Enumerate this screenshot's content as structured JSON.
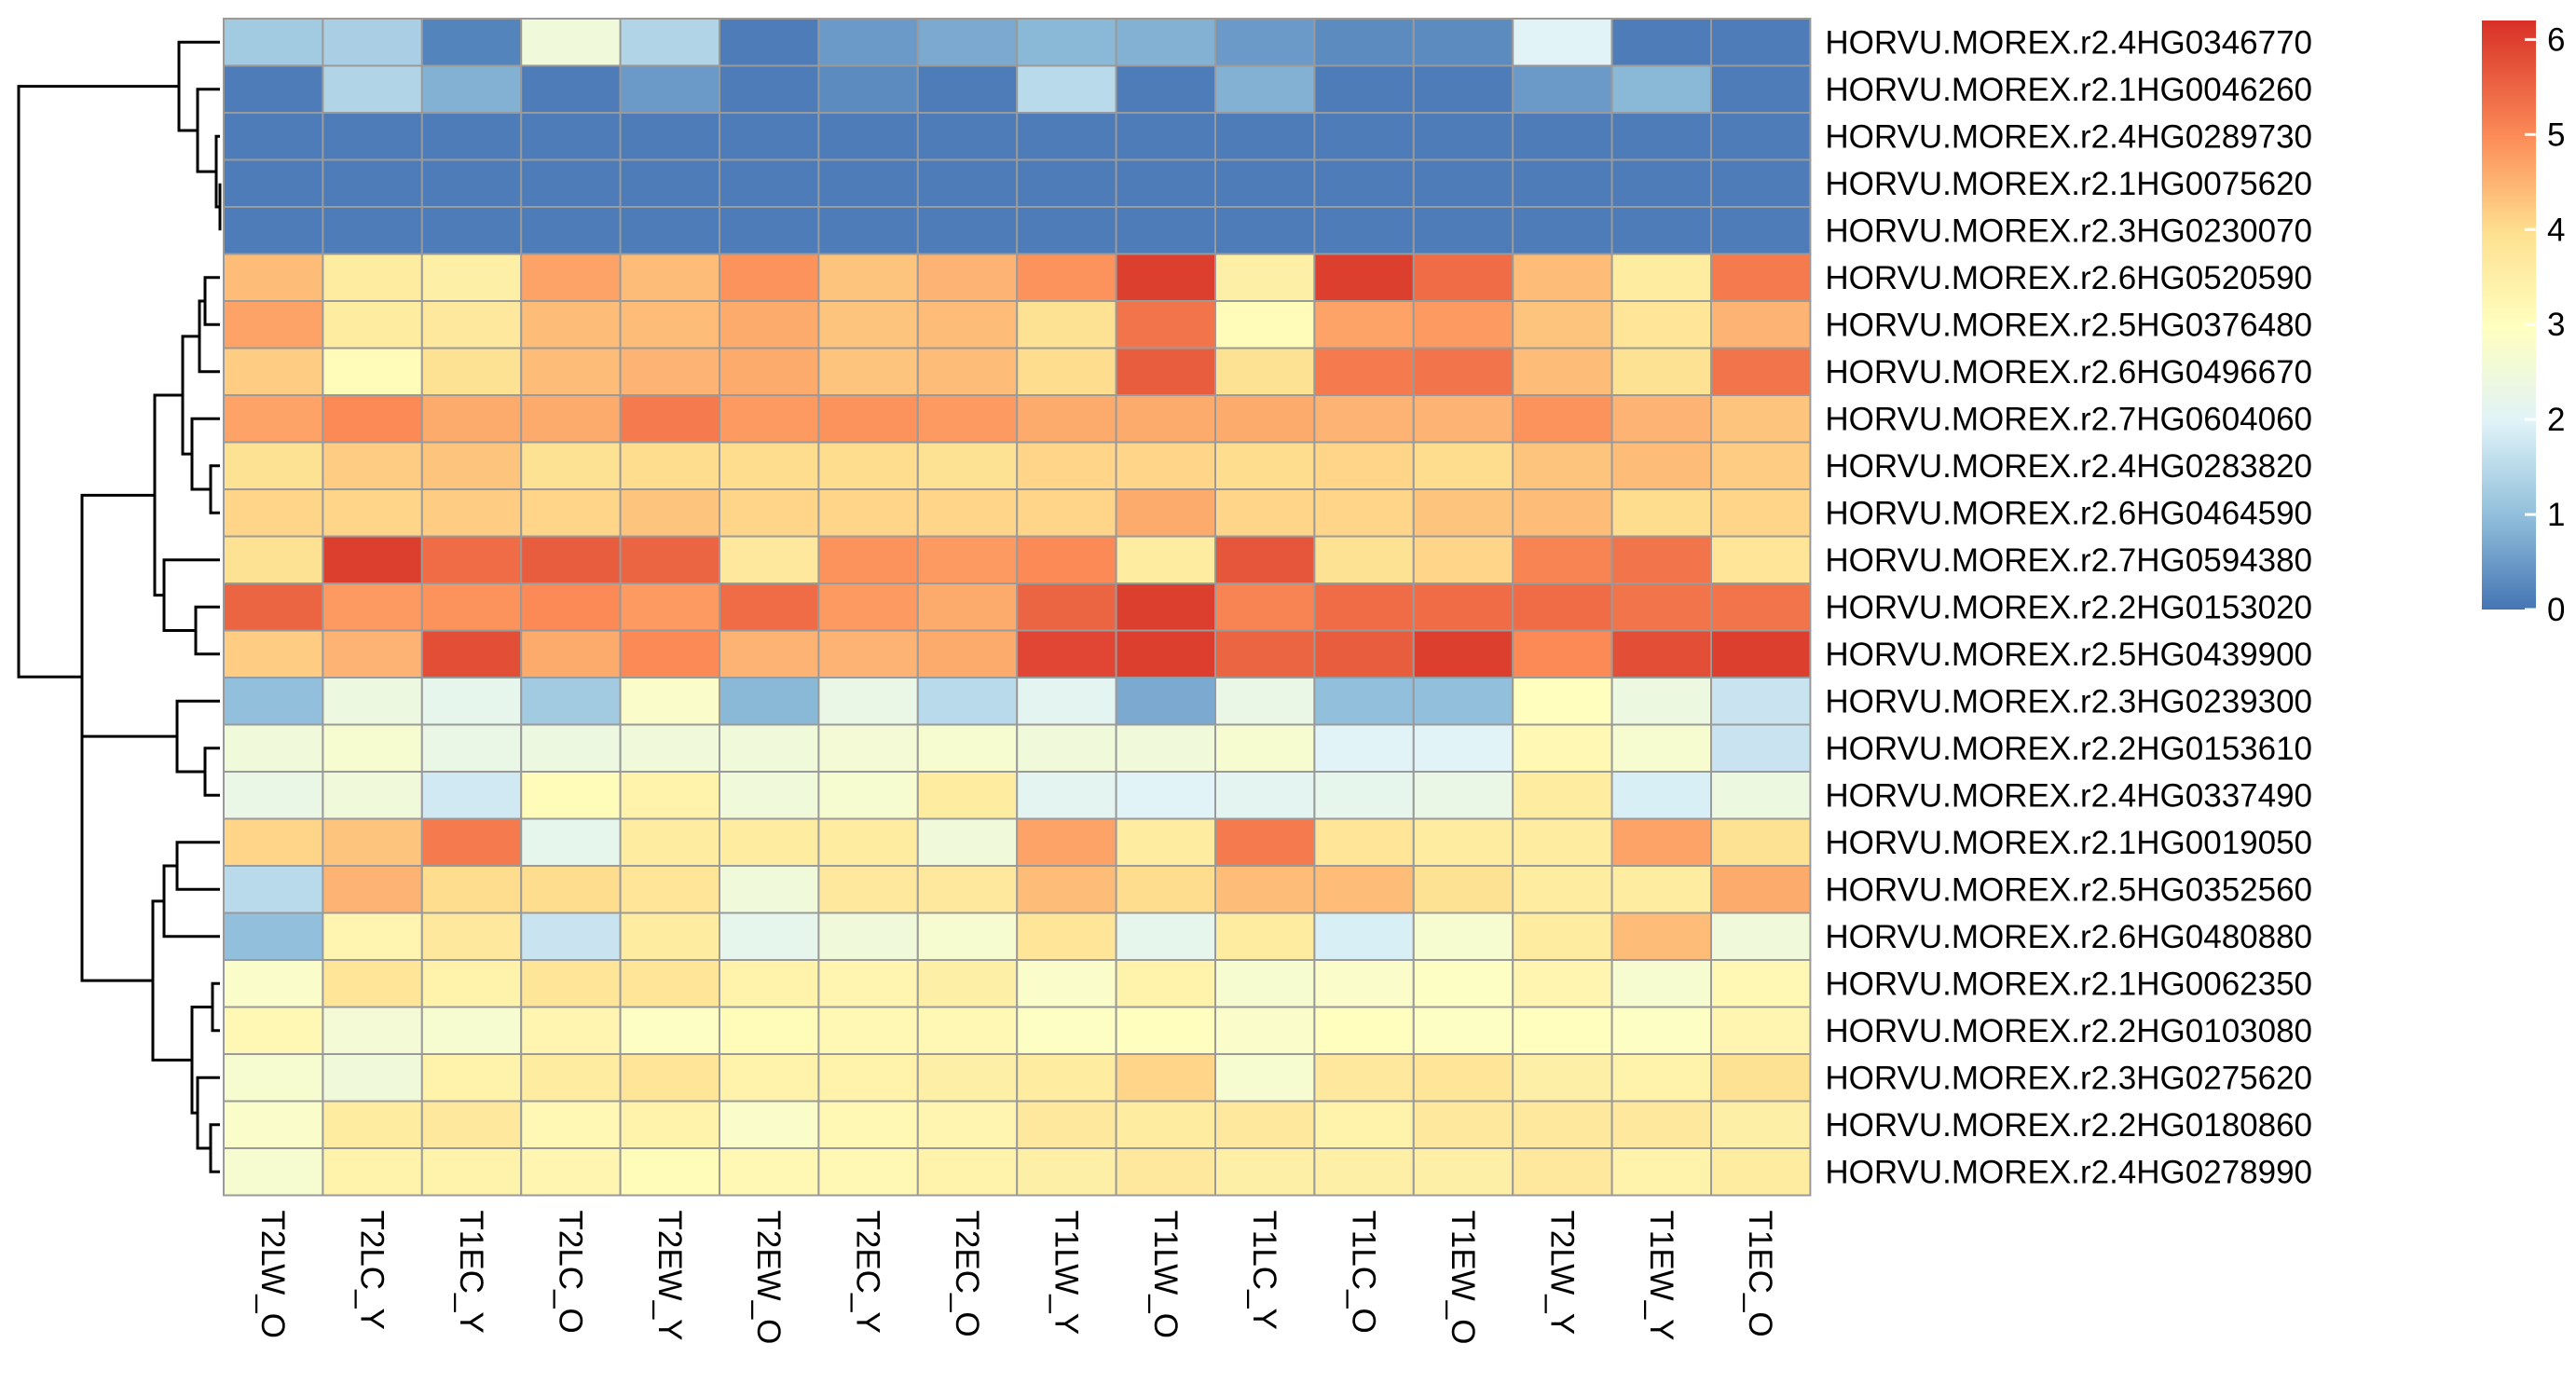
{
  "chart_data": {
    "type": "heatmap",
    "title": "",
    "xlabel": "",
    "ylabel": "",
    "columns": [
      "T2LW_O",
      "T2LC_Y",
      "T1EC_Y",
      "T2LC_O",
      "T2EW_Y",
      "T2EW_O",
      "T2EC_Y",
      "T2EC_O",
      "T1LW_Y",
      "T1LW_O",
      "T1LC_Y",
      "T1LC_O",
      "T1EW_O",
      "T2LW_Y",
      "T1EW_Y",
      "T1EC_O"
    ],
    "rows": [
      "HORVU.MOREX.r2.4HG0346770",
      "HORVU.MOREX.r2.1HG0046260",
      "HORVU.MOREX.r2.4HG0289730",
      "HORVU.MOREX.r2.1HG0075620",
      "HORVU.MOREX.r2.3HG0230070",
      "HORVU.MOREX.r2.6HG0520590",
      "HORVU.MOREX.r2.5HG0376480",
      "HORVU.MOREX.r2.6HG0496670",
      "HORVU.MOREX.r2.7HG0604060",
      "HORVU.MOREX.r2.4HG0283820",
      "HORVU.MOREX.r2.6HG0464590",
      "HORVU.MOREX.r2.7HG0594380",
      "HORVU.MOREX.r2.2HG0153020",
      "HORVU.MOREX.r2.5HG0439900",
      "HORVU.MOREX.r2.3HG0239300",
      "HORVU.MOREX.r2.2HG0153610",
      "HORVU.MOREX.r2.4HG0337490",
      "HORVU.MOREX.r2.1HG0019050",
      "HORVU.MOREX.r2.5HG0352560",
      "HORVU.MOREX.r2.6HG0480880",
      "HORVU.MOREX.r2.1HG0062350",
      "HORVU.MOREX.r2.2HG0103080",
      "HORVU.MOREX.r2.3HG0275620",
      "HORVU.MOREX.r2.2HG0180860",
      "HORVU.MOREX.r2.4HG0278990"
    ],
    "values": [
      [
        1.2,
        1.3,
        0.2,
        2.5,
        1.4,
        0.1,
        0.5,
        0.7,
        0.9,
        0.8,
        0.5,
        0.3,
        0.3,
        2.0,
        0.1,
        0.1
      ],
      [
        0.1,
        1.4,
        0.8,
        0.1,
        0.5,
        0.1,
        0.3,
        0.1,
        1.5,
        0.1,
        0.8,
        0.1,
        0.1,
        0.5,
        0.9,
        0.1
      ],
      [
        0.1,
        0.1,
        0.1,
        0.1,
        0.1,
        0.1,
        0.1,
        0.1,
        0.1,
        0.1,
        0.1,
        0.1,
        0.1,
        0.1,
        0.1,
        0.1
      ],
      [
        0.1,
        0.1,
        0.1,
        0.1,
        0.1,
        0.1,
        0.1,
        0.1,
        0.1,
        0.1,
        0.1,
        0.1,
        0.1,
        0.1,
        0.1,
        0.1
      ],
      [
        0.1,
        0.1,
        0.1,
        0.1,
        0.1,
        0.1,
        0.1,
        0.1,
        0.1,
        0.1,
        0.1,
        0.1,
        0.1,
        0.1,
        0.1,
        0.1
      ],
      [
        4.4,
        3.6,
        3.5,
        4.7,
        4.4,
        4.9,
        4.3,
        4.5,
        4.9,
        6.0,
        3.5,
        6.0,
        5.4,
        4.4,
        3.6,
        5.2
      ],
      [
        4.7,
        3.6,
        3.7,
        4.4,
        4.4,
        4.6,
        4.3,
        4.4,
        3.9,
        5.3,
        3.1,
        4.7,
        4.8,
        4.3,
        3.8,
        4.5
      ],
      [
        4.2,
        3.1,
        3.9,
        4.4,
        4.5,
        4.6,
        4.3,
        4.4,
        4.0,
        5.6,
        3.9,
        5.2,
        5.3,
        4.4,
        3.9,
        5.3
      ],
      [
        4.7,
        5.0,
        4.6,
        4.6,
        5.2,
        4.8,
        4.9,
        4.8,
        4.6,
        4.6,
        4.6,
        4.5,
        4.5,
        4.9,
        4.5,
        4.3
      ],
      [
        3.9,
        4.2,
        4.3,
        3.9,
        4.0,
        4.0,
        4.0,
        3.9,
        4.1,
        4.1,
        4.0,
        4.1,
        4.0,
        4.3,
        4.4,
        4.2
      ],
      [
        4.1,
        4.1,
        4.2,
        4.1,
        4.3,
        4.1,
        4.1,
        4.1,
        4.1,
        4.6,
        4.1,
        4.1,
        4.3,
        4.4,
        4.0,
        4.1
      ],
      [
        3.9,
        6.0,
        5.4,
        5.6,
        5.5,
        3.7,
        4.9,
        4.8,
        5.0,
        3.6,
        5.7,
        3.9,
        4.1,
        5.1,
        5.3,
        3.8
      ],
      [
        5.5,
        4.8,
        4.9,
        5.0,
        4.8,
        5.4,
        4.8,
        4.6,
        5.5,
        6.0,
        5.1,
        5.4,
        5.4,
        5.4,
        5.3,
        5.3
      ],
      [
        4.2,
        4.5,
        5.8,
        4.6,
        5.0,
        4.5,
        4.5,
        4.6,
        5.9,
        6.0,
        5.5,
        5.6,
        6.0,
        5.0,
        5.8,
        6.0
      ],
      [
        1.0,
        2.4,
        2.2,
        1.2,
        2.8,
        0.9,
        2.3,
        1.5,
        2.1,
        0.7,
        2.3,
        1.0,
        1.0,
        3.0,
        2.4,
        1.7
      ],
      [
        2.5,
        2.7,
        2.3,
        2.4,
        2.5,
        2.5,
        2.6,
        2.7,
        2.5,
        2.5,
        2.7,
        2.0,
        2.0,
        3.2,
        2.7,
        1.7
      ],
      [
        2.3,
        2.5,
        1.8,
        3.1,
        3.4,
        2.5,
        2.7,
        3.6,
        2.1,
        2.0,
        2.1,
        2.2,
        2.3,
        3.6,
        1.9,
        2.4
      ],
      [
        4.1,
        4.3,
        5.2,
        2.2,
        3.6,
        3.6,
        3.6,
        2.5,
        4.7,
        3.6,
        5.2,
        3.8,
        3.6,
        3.6,
        4.7,
        3.9
      ],
      [
        1.5,
        4.5,
        4.0,
        4.0,
        3.8,
        2.5,
        3.7,
        3.7,
        4.4,
        4.0,
        4.4,
        4.4,
        3.9,
        3.6,
        3.6,
        4.6
      ],
      [
        1.0,
        3.3,
        3.7,
        1.7,
        3.6,
        2.2,
        2.5,
        2.7,
        3.8,
        2.2,
        3.6,
        1.9,
        2.7,
        3.6,
        4.4,
        2.5
      ],
      [
        2.8,
        3.8,
        3.4,
        3.8,
        3.8,
        3.4,
        3.3,
        3.5,
        2.8,
        3.4,
        2.7,
        2.8,
        2.9,
        3.3,
        2.7,
        3.2
      ],
      [
        3.2,
        2.6,
        2.7,
        3.3,
        2.9,
        3.1,
        3.2,
        3.2,
        2.9,
        3.0,
        2.8,
        3.0,
        2.9,
        3.0,
        2.9,
        3.3
      ],
      [
        2.7,
        2.5,
        3.4,
        3.6,
        3.8,
        3.4,
        3.4,
        3.5,
        3.6,
        4.1,
        2.7,
        3.7,
        3.8,
        3.5,
        3.4,
        3.9
      ],
      [
        2.8,
        3.6,
        3.7,
        3.2,
        3.4,
        2.8,
        3.2,
        3.3,
        3.7,
        3.6,
        3.7,
        3.4,
        3.7,
        3.7,
        3.7,
        3.5
      ],
      [
        2.7,
        3.4,
        3.4,
        3.3,
        3.1,
        3.2,
        3.2,
        3.4,
        3.5,
        3.7,
        3.5,
        3.5,
        3.5,
        3.7,
        3.4,
        3.6
      ]
    ],
    "legend": {
      "min": 0,
      "max": 6.2,
      "ticks": [
        0,
        1,
        2,
        3,
        4,
        5,
        6
      ],
      "position": "top-right"
    },
    "row_clustering": true,
    "column_clustering": false
  }
}
